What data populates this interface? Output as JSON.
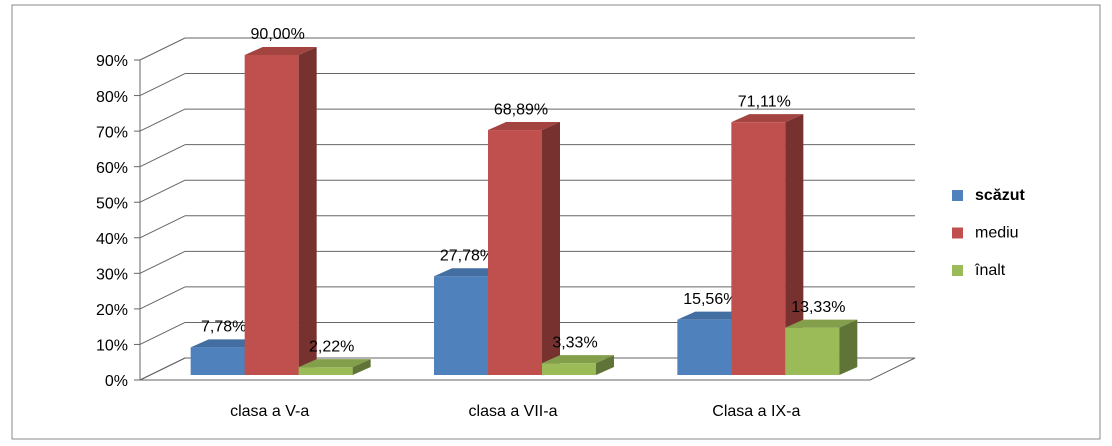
{
  "chart_data": {
    "type": "bar3d",
    "categories": [
      "clasa a V-a",
      "clasa a VII-a",
      "Clasa a IX-a"
    ],
    "series": [
      {
        "name": "scăzut",
        "color": "#4f81bd",
        "values": [
          7.78,
          27.78,
          15.56
        ],
        "value_labels": [
          "7,78%",
          "27,78%",
          "15,56%"
        ]
      },
      {
        "name": "mediu",
        "color": "#c0504d",
        "values": [
          90.0,
          68.89,
          71.11
        ],
        "value_labels": [
          "90,00%",
          "68,89%",
          "71,11%"
        ]
      },
      {
        "name": "înalt",
        "color": "#9bbb59",
        "values": [
          2.22,
          3.33,
          13.33
        ],
        "value_labels": [
          "2,22%",
          "3,33%",
          "13,33%"
        ]
      }
    ],
    "ylim": [
      0,
      90
    ],
    "yticks": [
      {
        "value": 0,
        "label": "0%"
      },
      {
        "value": 10,
        "label": "10%"
      },
      {
        "value": 20,
        "label": "20%"
      },
      {
        "value": 30,
        "label": "30%"
      },
      {
        "value": 40,
        "label": "40%"
      },
      {
        "value": 50,
        "label": "50%"
      },
      {
        "value": 60,
        "label": "60%"
      },
      {
        "value": 70,
        "label": "70%"
      },
      {
        "value": 80,
        "label": "80%"
      },
      {
        "value": 90,
        "label": "90%"
      }
    ],
    "grid": true,
    "legend": "right"
  }
}
